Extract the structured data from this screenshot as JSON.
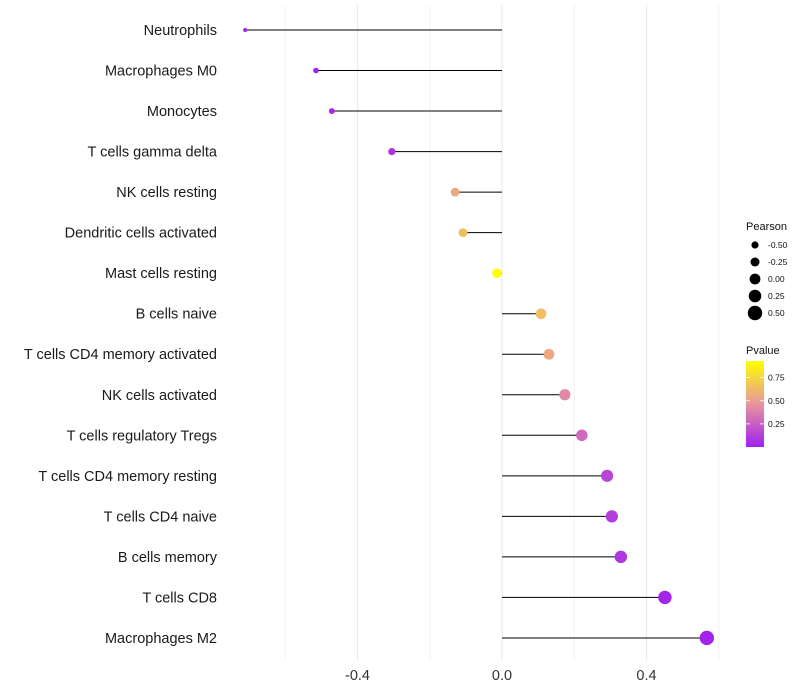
{
  "chart_data": {
    "type": "lollipop",
    "title": "",
    "xlabel": "",
    "ylabel": "",
    "xlim": [
      -0.8,
      0.72
    ],
    "x_ticks": [
      -0.4,
      0.0,
      0.4
    ],
    "x_tick_labels": [
      "-0.4",
      "0.0",
      "0.4"
    ],
    "grid": true,
    "categories": [
      "Neutrophils",
      "Macrophages M0",
      "Monocytes",
      "T cells gamma delta",
      "NK cells resting",
      "Dendritic cells activated",
      "Mast cells resting",
      "B cells naive",
      "T cells CD4 memory activated",
      "NK cells activated",
      "T cells regulatory  Tregs ",
      "T cells CD4 memory resting",
      "T cells CD4 naive",
      "B cells memory",
      "T cells CD8",
      "Macrophages M2"
    ],
    "values": [
      -0.711,
      -0.515,
      -0.471,
      -0.305,
      -0.13,
      -0.108,
      -0.014,
      0.108,
      0.13,
      0.174,
      0.221,
      0.291,
      0.304,
      0.329,
      0.451,
      0.567
    ],
    "pvalues": [
      0.01,
      0.02,
      0.03,
      0.08,
      0.55,
      0.65,
      0.93,
      0.65,
      0.55,
      0.42,
      0.3,
      0.15,
      0.12,
      0.09,
      0.02,
      0.01
    ],
    "legend": {
      "position": "right",
      "size_title": "Pearson",
      "size_values": [
        -0.5,
        -0.25,
        0.0,
        0.25,
        0.5
      ],
      "size_labels": [
        "-0.50",
        "-0.25",
        "0.00",
        "0.25",
        "0.50"
      ],
      "color_title": "Pvalue",
      "color_labels": [
        "0.75",
        "0.50",
        "0.25"
      ],
      "color_values": [
        0.75,
        0.5,
        0.25
      ],
      "color_range": [
        0.0,
        0.93
      ],
      "color_low": "#a020f0",
      "color_mid": "#e8959e",
      "color_high": "#ffff00"
    }
  }
}
